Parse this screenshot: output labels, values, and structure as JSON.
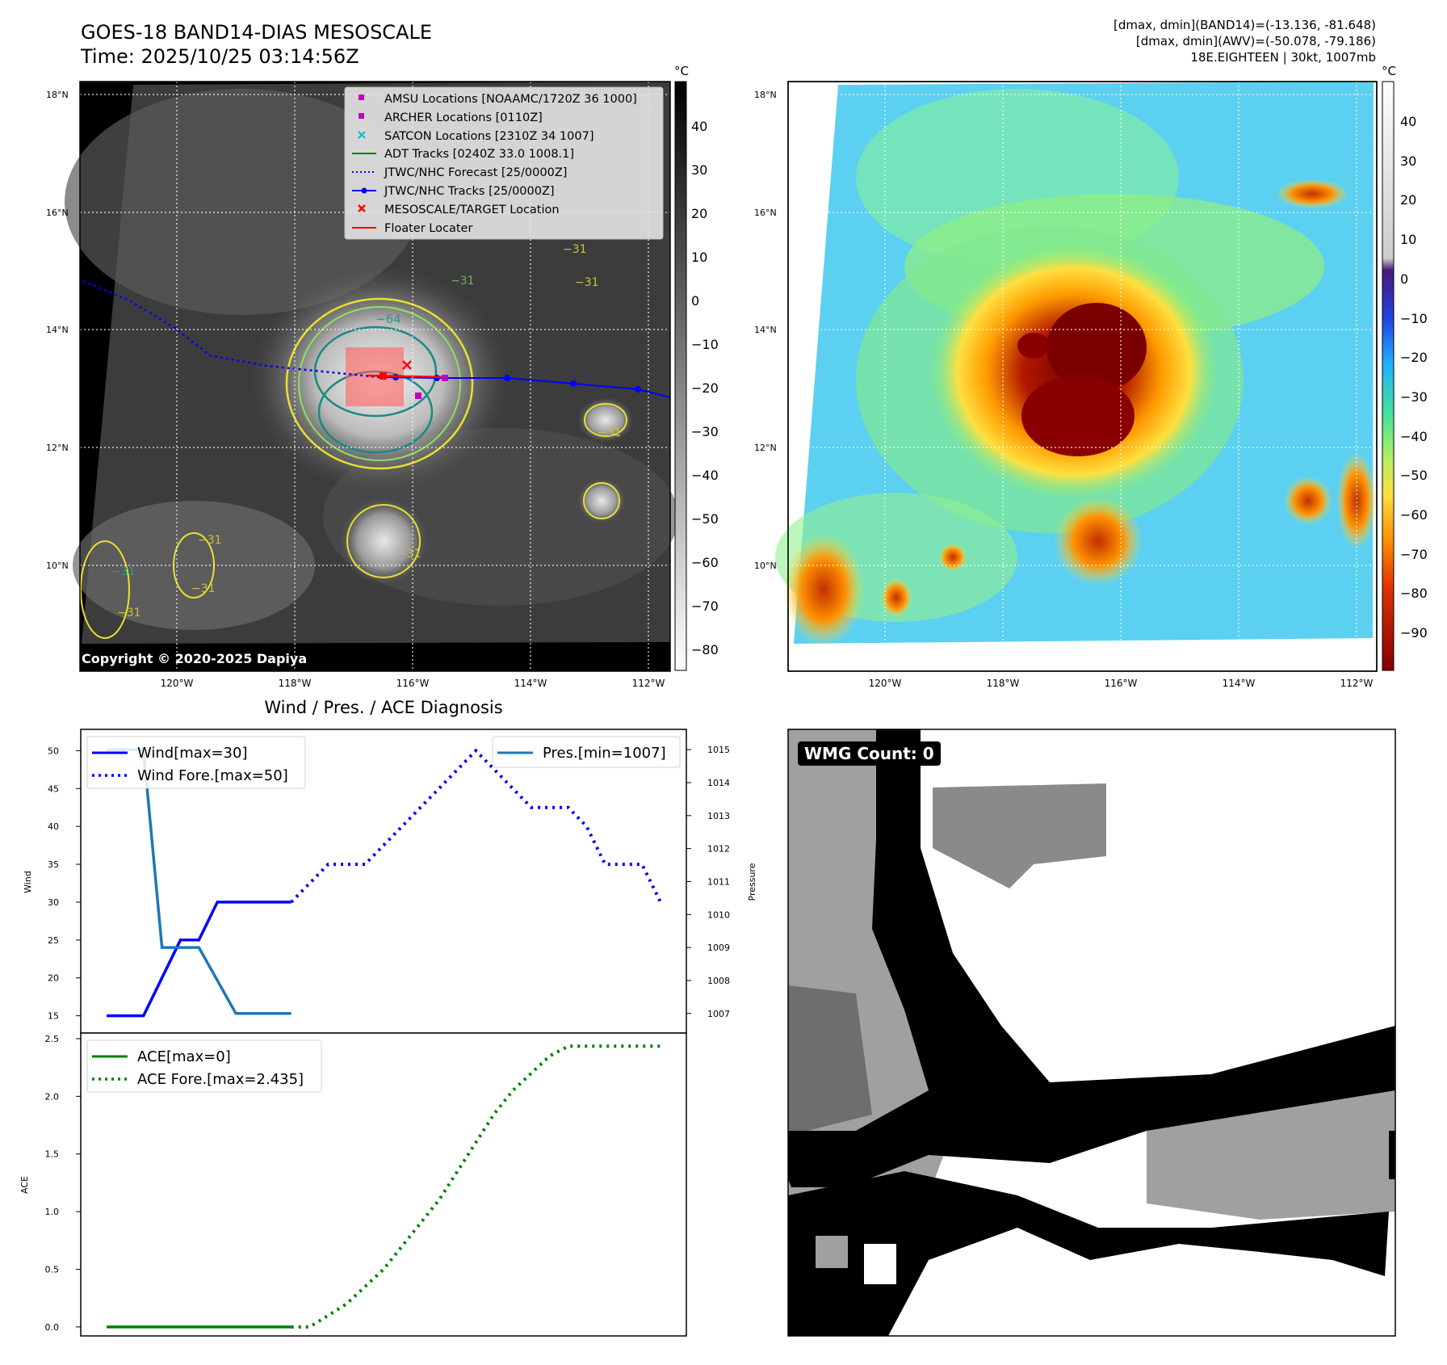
{
  "header": {
    "title_line1": "GOES-18 BAND14-DIAS MESOSCALE",
    "title_line2": "Time: 2025/10/25 03:14:56Z",
    "info_line1": "[dmax, dmin](BAND14)=(-13.136, -81.648)",
    "info_line2": "[dmax, dmin](AWV)=(-50.078, -79.186)",
    "info_line3": "18E.EIGHTEEN | 30kt, 1007mb"
  },
  "map_axes": {
    "lat_labels": [
      "18°N",
      "16°N",
      "14°N",
      "12°N",
      "10°N"
    ],
    "lon_labels": [
      "120°W",
      "118°W",
      "116°W",
      "114°W",
      "112°W"
    ],
    "unit": "°C"
  },
  "left_map": {
    "copyright": "Copyright © 2020-2025 Dapiya",
    "colorbar_ticks": [
      "40",
      "30",
      "20",
      "10",
      "0",
      "−10",
      "−20",
      "−30",
      "−40",
      "−50",
      "−60",
      "−70",
      "−80"
    ],
    "contour_labels": [
      "−31",
      "−31",
      "−31",
      "−64",
      "−31",
      "−31",
      "−31",
      "−31",
      "−31",
      "−31"
    ],
    "legend": [
      {
        "label": "AMSU Locations [NOAAMC/1720Z 36 1000]",
        "color": "#bf00bf",
        "marker": "square"
      },
      {
        "label": "ARCHER Locations [0110Z]",
        "color": "#bf00bf",
        "marker": "square"
      },
      {
        "label": "SATCON Locations [2310Z 34 1007]",
        "color": "#00bfbf",
        "marker": "x"
      },
      {
        "label": "ADT Tracks [0240Z 33.0 1008.1]",
        "color": "#008000",
        "marker": "line"
      },
      {
        "label": "JTWC/NHC Forecast [25/0000Z]",
        "color": "#0000ff",
        "marker": "dotted"
      },
      {
        "label": "JTWC/NHC Tracks [25/0000Z]",
        "color": "#0000ff",
        "marker": "line-dot"
      },
      {
        "label": "MESOSCALE/TARGET Location",
        "color": "#ff0000",
        "marker": "x"
      },
      {
        "label": "Floater Locater",
        "color": "#ff0000",
        "marker": "line"
      }
    ]
  },
  "right_map": {
    "colorbar_ticks": [
      "40",
      "30",
      "20",
      "10",
      "0",
      "−10",
      "−20",
      "−30",
      "−40",
      "−50",
      "−60",
      "−70",
      "−80",
      "−90"
    ]
  },
  "diagnosis": {
    "title": "Wind / Pres. / ACE Diagnosis",
    "wind_ylabel": "Wind",
    "pressure_ylabel": "Pressure",
    "ace_ylabel": "ACE",
    "wind_ticks": [
      "50",
      "45",
      "40",
      "35",
      "30",
      "25",
      "20",
      "15"
    ],
    "pressure_ticks": [
      "1015",
      "1014",
      "1013",
      "1012",
      "1011",
      "1010",
      "1009",
      "1008",
      "1007"
    ],
    "ace_ticks": [
      "2.5",
      "2.0",
      "1.5",
      "1.0",
      "0.5",
      "0.0"
    ],
    "legend_wind": "Wind[max=30]",
    "legend_wind_fore": "Wind Fore.[max=50]",
    "legend_pres": "Pres.[min=1007]",
    "legend_ace": "ACE[max=0]",
    "legend_ace_fore": "ACE Fore.[max=2.435]"
  },
  "wmg": {
    "badge": "WMG Count: 0"
  },
  "chart_data": {
    "type": "line",
    "title": "Wind / Pres. / ACE Diagnosis",
    "x": [
      0,
      1,
      2,
      3,
      4,
      5,
      6,
      7,
      8,
      9,
      10,
      11,
      12,
      13,
      14,
      15,
      16,
      17,
      18,
      19,
      20,
      21,
      22,
      23,
      24,
      25,
      26,
      27,
      28,
      29,
      30
    ],
    "series": [
      {
        "name": "Wind[max=30]",
        "axis": "wind",
        "x": [
          0,
          1,
          2,
          3,
          4,
          5,
          6,
          7,
          8,
          9,
          10
        ],
        "values": [
          15,
          15,
          15,
          20,
          25,
          25,
          30,
          30,
          30,
          30,
          30
        ]
      },
      {
        "name": "Wind Fore.[max=50]",
        "axis": "wind",
        "x": [
          10,
          11,
          12,
          13,
          14,
          15,
          16,
          17,
          18,
          19,
          20,
          21,
          22,
          23,
          24,
          25,
          26,
          27,
          28,
          29,
          30
        ],
        "values": [
          30,
          32.5,
          35,
          35,
          35,
          37.5,
          40,
          42.5,
          45,
          47.5,
          50,
          47.5,
          45,
          42.5,
          42.5,
          42.5,
          40,
          35,
          35,
          35,
          30
        ]
      },
      {
        "name": "Pres.[min=1007]",
        "axis": "pressure",
        "x": [
          0,
          1,
          2,
          3,
          4,
          5,
          6,
          7,
          8,
          9,
          10
        ],
        "values": [
          1015,
          1015,
          1015,
          1009,
          1009,
          1009,
          1008,
          1007,
          1007,
          1007,
          1007
        ]
      },
      {
        "name": "ACE[max=0]",
        "axis": "ace",
        "x": [
          0,
          10
        ],
        "values": [
          0,
          0
        ]
      },
      {
        "name": "ACE Fore.[max=2.435]",
        "axis": "ace",
        "x": [
          10,
          11,
          12,
          13,
          14,
          15,
          16,
          17,
          18,
          19,
          20,
          21,
          22,
          23,
          24,
          25,
          26,
          27,
          28,
          29,
          30
        ],
        "values": [
          0,
          0,
          0.1,
          0.2,
          0.35,
          0.5,
          0.7,
          0.9,
          1.1,
          1.35,
          1.6,
          1.85,
          2.05,
          2.2,
          2.35,
          2.435,
          2.435,
          2.435,
          2.435,
          2.435,
          2.435
        ]
      }
    ],
    "wind_ylim": [
      14,
      51
    ],
    "pressure_ylim": [
      1006.7,
      1015.2
    ],
    "ace_ylim": [
      -0.05,
      2.5
    ],
    "grid": false,
    "legend_wind_placement": "upper-left",
    "legend_pres_placement": "upper-right",
    "legend_ace_placement": "upper-left"
  },
  "colors": {
    "wind": "#0000ff",
    "pressure": "#1f77b4",
    "ace": "#008000",
    "track": "#0000ff",
    "target": "#ff0000"
  }
}
